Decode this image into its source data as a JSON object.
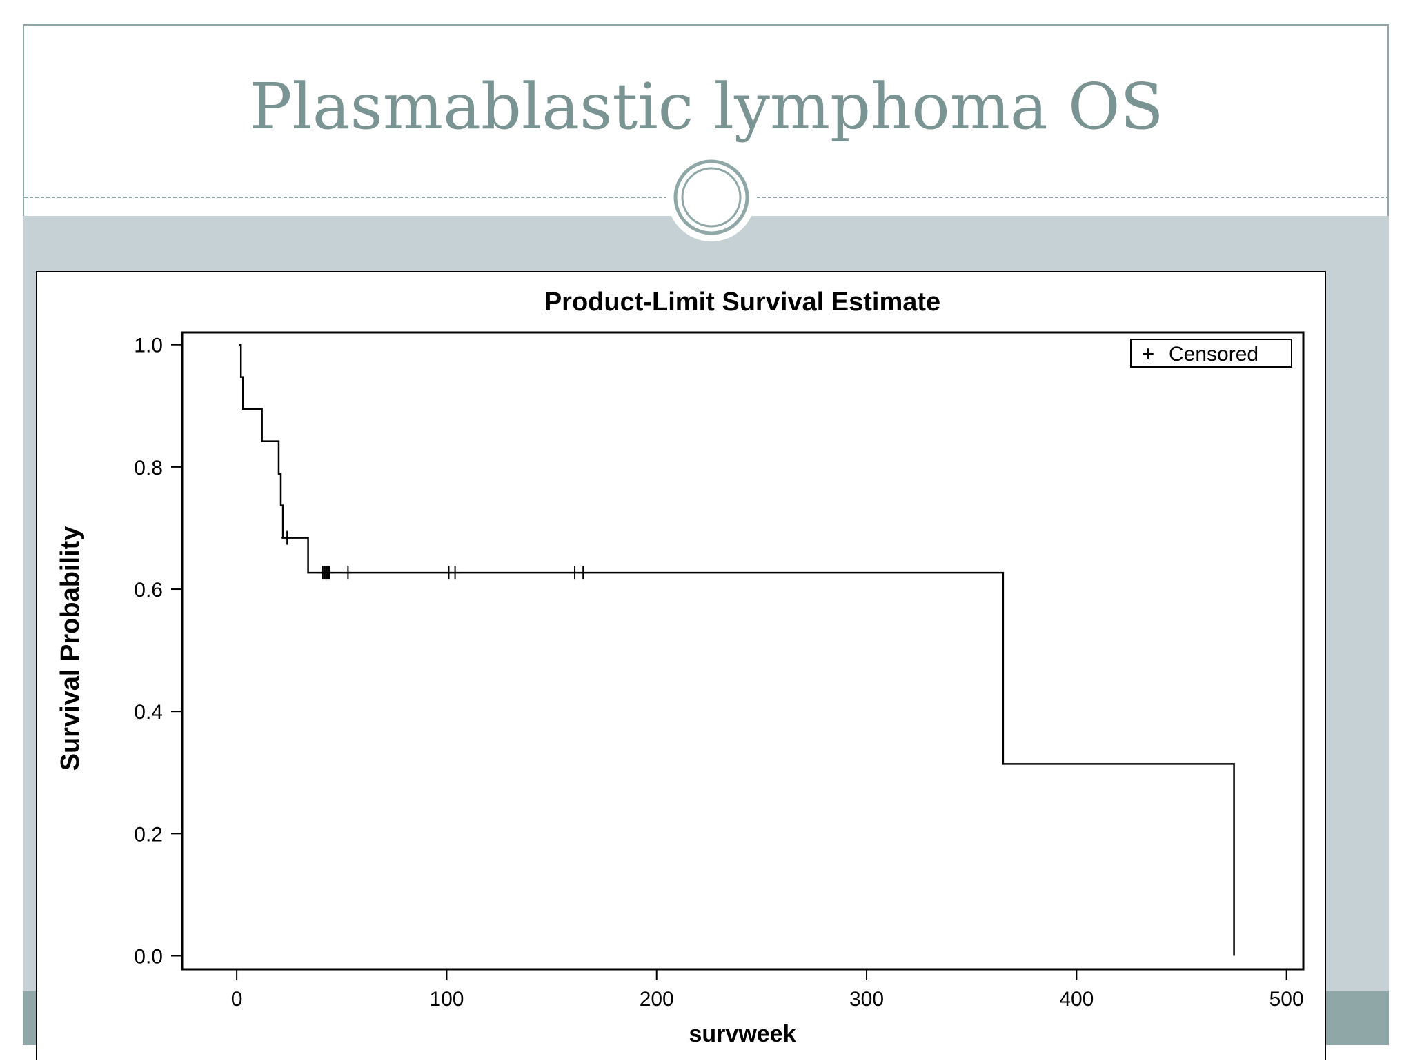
{
  "slide": {
    "title": "Plasmablastic lymphoma OS",
    "accent_color": "#8fa8a7",
    "title_color": "#7a9493",
    "band_color": "#c5d1d5"
  },
  "chart_data": {
    "type": "line",
    "title": "Product-Limit Survival Estimate",
    "xlabel": "survweek",
    "ylabel": "Survival Probability",
    "xlim": [
      -26,
      508
    ],
    "ylim": [
      -0.022,
      1.02
    ],
    "x_ticks": [
      0,
      100,
      200,
      300,
      400,
      500
    ],
    "y_ticks": [
      0.0,
      0.2,
      0.4,
      0.6,
      0.8,
      1.0
    ],
    "y_tick_labels": [
      "0.0",
      "0.2",
      "0.4",
      "0.6",
      "0.8",
      "1.0"
    ],
    "legend": {
      "position": "top-right",
      "entries": [
        {
          "symbol": "+",
          "label": "Censored"
        }
      ]
    },
    "series": [
      {
        "name": "",
        "step_x": [
          1,
          2,
          3,
          12,
          20,
          21,
          22,
          34,
          365,
          475
        ],
        "step_y": [
          1.0,
          0.947,
          0.895,
          0.842,
          0.789,
          0.737,
          0.684,
          0.627,
          0.314,
          0.0
        ],
        "end_x": 475
      }
    ],
    "censored": [
      {
        "x": 24,
        "y": 0.684
      },
      {
        "x": 41,
        "y": 0.627
      },
      {
        "x": 42,
        "y": 0.627
      },
      {
        "x": 43,
        "y": 0.627
      },
      {
        "x": 44,
        "y": 0.627
      },
      {
        "x": 53,
        "y": 0.627
      },
      {
        "x": 101,
        "y": 0.627
      },
      {
        "x": 104,
        "y": 0.627
      },
      {
        "x": 161,
        "y": 0.627
      },
      {
        "x": 165,
        "y": 0.627
      }
    ]
  }
}
